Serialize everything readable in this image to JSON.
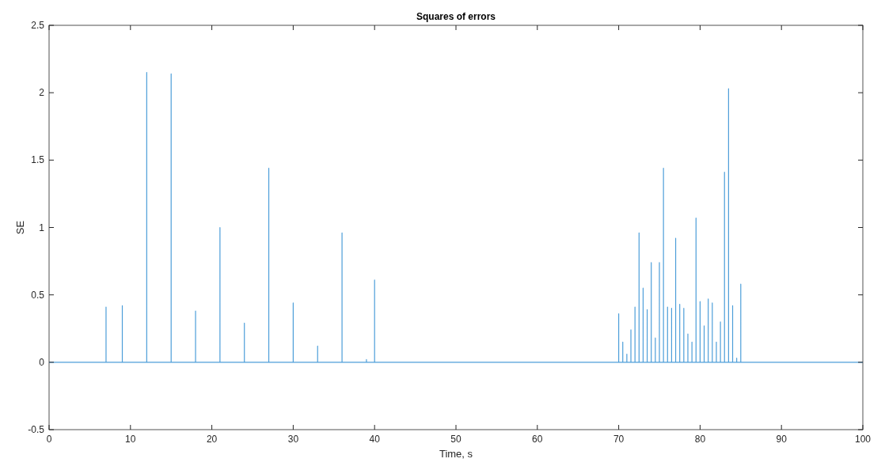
{
  "chart_data": {
    "type": "line",
    "title": "Squares of errors",
    "xlabel": "Time, s",
    "ylabel": "SE",
    "xlim": [
      0,
      100
    ],
    "ylim": [
      -0.5,
      2.5
    ],
    "xticks": [
      0,
      10,
      20,
      30,
      40,
      50,
      60,
      70,
      80,
      90,
      100
    ],
    "yticks": [
      -0.5,
      0,
      0.5,
      1,
      1.5,
      2,
      2.5
    ],
    "grid": false,
    "marker": "none",
    "line_style": "solid",
    "series": [
      {
        "color": "#4d9ed9",
        "x": [
          0,
          7,
          7,
          7,
          9,
          9,
          9,
          12,
          12,
          12,
          15,
          15,
          15,
          18,
          18,
          18,
          21,
          21,
          21,
          24,
          24,
          24,
          27,
          27,
          27,
          30,
          30,
          30,
          33,
          33,
          33,
          36,
          36,
          36,
          39,
          39,
          39,
          40,
          40,
          40,
          70,
          70,
          70,
          70.5,
          70.5,
          70.5,
          71,
          71,
          71,
          71.5,
          71.5,
          71.5,
          72,
          72,
          72,
          72.5,
          72.5,
          72.5,
          73,
          73,
          73,
          73.5,
          73.5,
          73.5,
          74,
          74,
          74,
          74.5,
          74.5,
          74.5,
          75,
          75,
          75,
          75.5,
          75.5,
          75.5,
          76,
          76,
          76,
          76.5,
          76.5,
          76.5,
          77,
          77,
          77,
          77.5,
          77.5,
          77.5,
          78,
          78,
          78,
          78.5,
          78.5,
          78.5,
          79,
          79,
          79,
          79.5,
          79.5,
          79.5,
          80,
          80,
          80,
          80.5,
          80.5,
          80.5,
          81,
          81,
          81,
          81.5,
          81.5,
          81.5,
          82,
          82,
          82,
          82.5,
          82.5,
          82.5,
          83,
          83,
          83,
          83.5,
          83.5,
          83.5,
          84,
          84,
          84,
          84.5,
          84.5,
          84.5,
          85,
          85,
          85,
          100
        ],
        "values": [
          0,
          0,
          0.41,
          0,
          0,
          0.42,
          0,
          0,
          2.15,
          0,
          0,
          2.14,
          0,
          0,
          0.38,
          0,
          0,
          1.0,
          0,
          0,
          0.29,
          0,
          0,
          1.44,
          0,
          0,
          0.44,
          0,
          0,
          0.12,
          0,
          0,
          0.96,
          0,
          0,
          0.02,
          0,
          0,
          0.61,
          0,
          0,
          0.36,
          0,
          0,
          0.15,
          0,
          0,
          0.06,
          0,
          0,
          0.24,
          0,
          0,
          0.41,
          0,
          0,
          0.96,
          0,
          0,
          0.55,
          0,
          0,
          0.39,
          0,
          0,
          0.74,
          0,
          0,
          0.18,
          0,
          0,
          0.74,
          0,
          0,
          1.44,
          0,
          0,
          0.41,
          0,
          0,
          0.4,
          0,
          0,
          0.92,
          0,
          0,
          0.43,
          0,
          0,
          0.4,
          0,
          0,
          0.21,
          0,
          0,
          0.15,
          0,
          0,
          1.07,
          0,
          0,
          0.45,
          0,
          0,
          0.27,
          0,
          0,
          0.47,
          0,
          0,
          0.44,
          0,
          0,
          0.15,
          0,
          0,
          0.3,
          0,
          0,
          1.41,
          0,
          0,
          2.03,
          0,
          0,
          0.42,
          0,
          0,
          0.03,
          0,
          0,
          0.58,
          0,
          0
        ]
      }
    ]
  }
}
